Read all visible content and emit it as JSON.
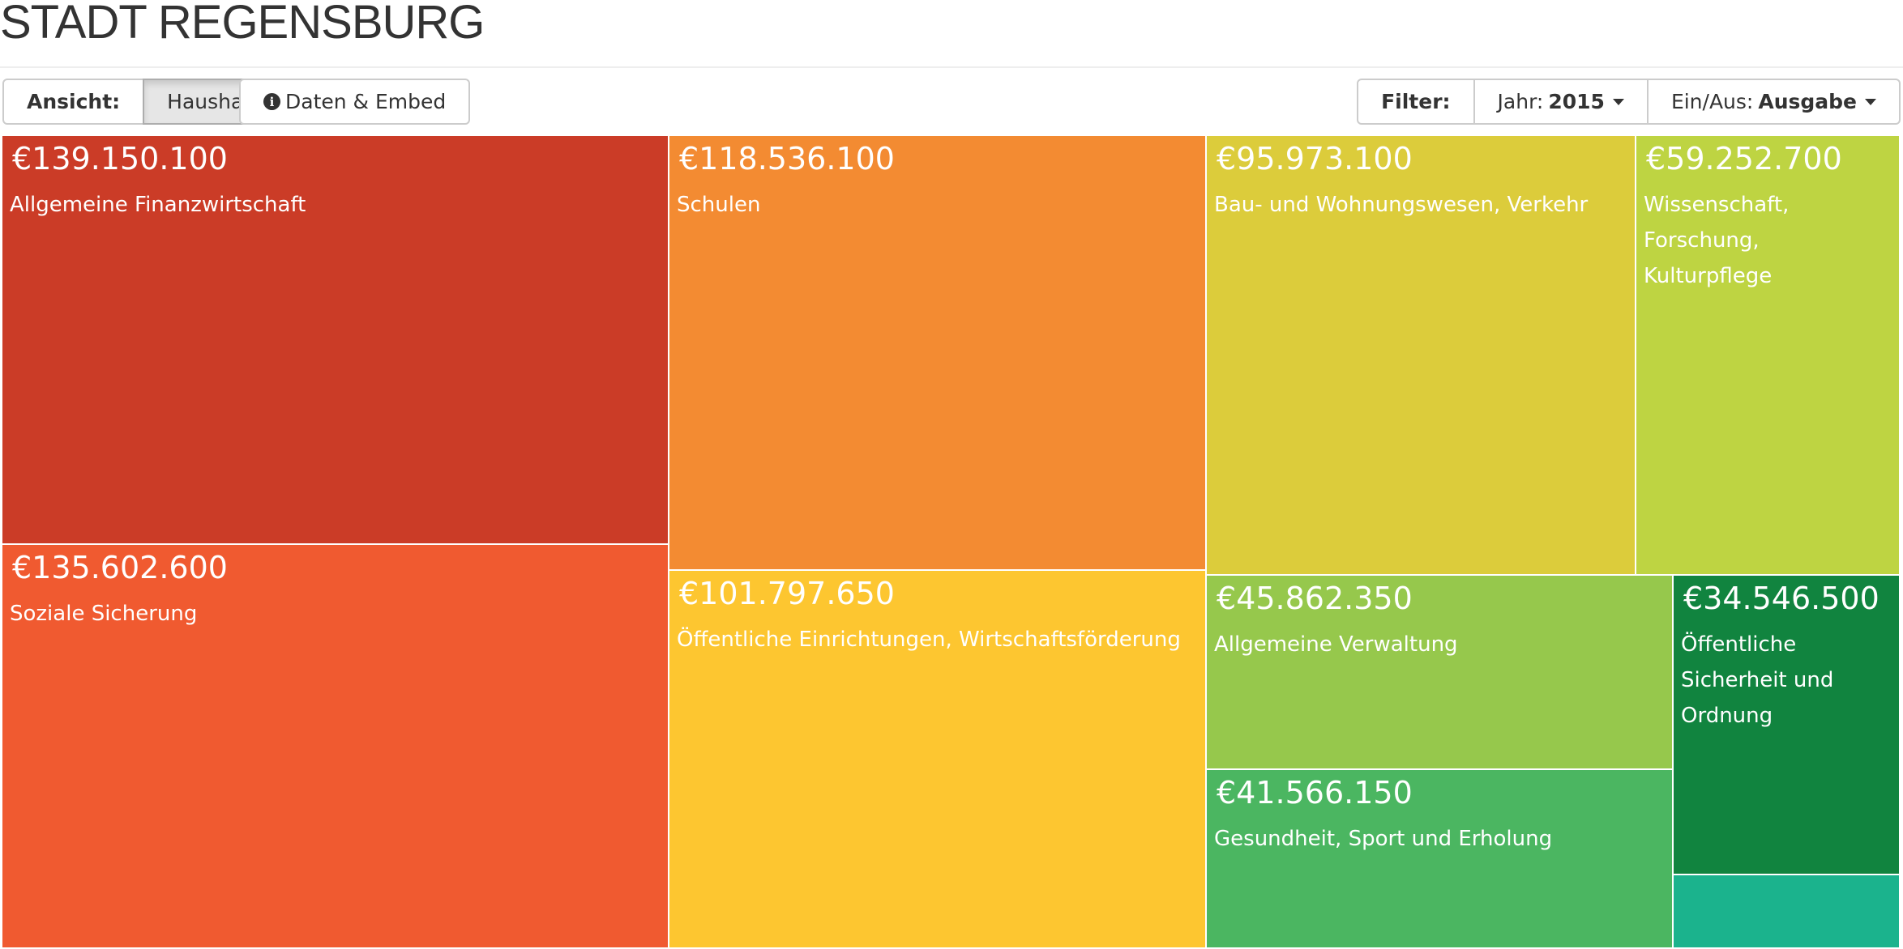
{
  "header": {
    "title": "STADT REGENSBURG"
  },
  "toolbar": {
    "view_label": "Ansicht:",
    "view_active": "Haushalt",
    "data_embed": "Daten & Embed",
    "filter_label": "Filter:",
    "year_label": "Jahr:",
    "year_value": "2015",
    "inout_label": "Ein/Aus:",
    "inout_value": "Ausgabe"
  },
  "chart_data": {
    "type": "treemap",
    "currency": "€",
    "items": [
      {
        "label": "€139.150.100",
        "name": "Allgemeine Finanzwirtschaft",
        "value": 139150100,
        "color": "#cb3c27"
      },
      {
        "label": "€135.602.600",
        "name": "Soziale Sicherung",
        "value": 135602600,
        "color": "#f05a30"
      },
      {
        "label": "€118.536.100",
        "name": "Schulen",
        "value": 118536100,
        "color": "#f38b32"
      },
      {
        "label": "€101.797.650",
        "name": "Öffentliche Einrichtungen, Wirtschaftsförderung",
        "value": 101797650,
        "color": "#fdc630"
      },
      {
        "label": "€95.973.100",
        "name": "Bau- und Wohnungswesen, Verkehr",
        "value": 95973100,
        "color": "#dccc3b"
      },
      {
        "label": "€59.252.700",
        "name": "Wissenschaft, Forschung, Kulturpflege",
        "value": 59252700,
        "color": "#bed442"
      },
      {
        "label": "€45.862.350",
        "name": "Allgemeine Verwaltung",
        "value": 45862350,
        "color": "#96c84c"
      },
      {
        "label": "€41.566.150",
        "name": "Gesundheit, Sport und Erholung",
        "value": 41566150,
        "color": "#4bb661"
      },
      {
        "label": "€34.546.500",
        "name": "Öffentliche Sicherheit und Ordnung",
        "value": 34546500,
        "color": "#11843f"
      },
      {
        "label": "",
        "name": "",
        "value": null,
        "color": "#1bb38d"
      }
    ]
  }
}
